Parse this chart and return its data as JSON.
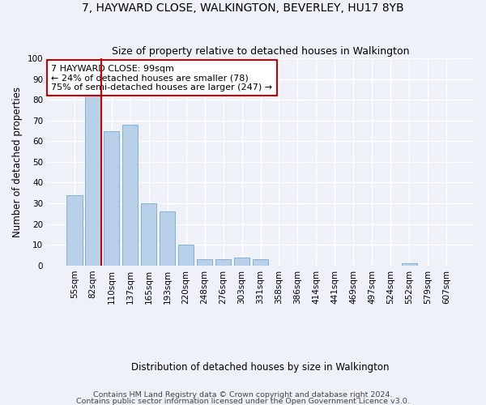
{
  "title": "7, HAYWARD CLOSE, WALKINGTON, BEVERLEY, HU17 8YB",
  "subtitle": "Size of property relative to detached houses in Walkington",
  "xlabel": "Distribution of detached houses by size in Walkington",
  "ylabel": "Number of detached properties",
  "bar_labels": [
    "55sqm",
    "82sqm",
    "110sqm",
    "137sqm",
    "165sqm",
    "193sqm",
    "220sqm",
    "248sqm",
    "276sqm",
    "303sqm",
    "331sqm",
    "358sqm",
    "386sqm",
    "414sqm",
    "441sqm",
    "469sqm",
    "497sqm",
    "524sqm",
    "552sqm",
    "579sqm",
    "607sqm"
  ],
  "bar_values": [
    34,
    82,
    65,
    68,
    30,
    26,
    10,
    3,
    3,
    4,
    3,
    0,
    0,
    0,
    0,
    0,
    0,
    0,
    1,
    0,
    0
  ],
  "bar_color": "#b8d0e8",
  "bar_edge_color": "#7aaace",
  "vline_x_idx": 1,
  "vline_color": "#cc0000",
  "annotation_text": "7 HAYWARD CLOSE: 99sqm\n← 24% of detached houses are smaller (78)\n75% of semi-detached houses are larger (247) →",
  "annotation_box_color": "#ffffff",
  "annotation_box_edge": "#cc0000",
  "ylim": [
    0,
    100
  ],
  "yticks": [
    0,
    10,
    20,
    30,
    40,
    50,
    60,
    70,
    80,
    90,
    100
  ],
  "footer1": "Contains HM Land Registry data © Crown copyright and database right 2024.",
  "footer2": "Contains public sector information licensed under the Open Government Licence v3.0.",
  "background_color": "#eef2f8",
  "grid_color": "#ffffff",
  "title_fontsize": 10,
  "subtitle_fontsize": 9,
  "axis_label_fontsize": 8.5,
  "tick_fontsize": 7.5,
  "annotation_fontsize": 8,
  "footer_fontsize": 6.8
}
